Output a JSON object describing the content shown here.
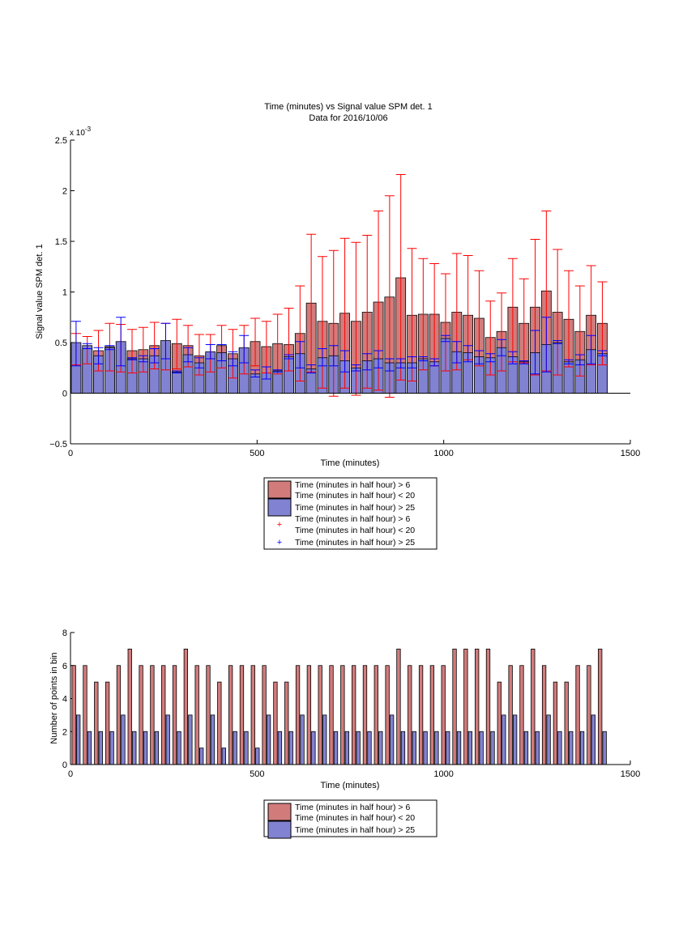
{
  "chart_data": [
    {
      "type": "bar",
      "title": "Time (minutes) vs Signal value SPM det. 1",
      "subtitle": "Data for 2016/10/06",
      "xlabel": "Time (minutes)",
      "ylabel": "Signal value SPM det. 1",
      "y_multiplier_label": "x 10",
      "y_multiplier_exp": "-3",
      "xlim": [
        0,
        1500
      ],
      "ylim": [
        -0.5,
        2.5
      ],
      "xticks": [
        "0",
        "500",
        "1000",
        "1500"
      ],
      "yticks": [
        "−0.5",
        "0",
        "0.5",
        "1",
        "1.5",
        "2",
        "2.5"
      ],
      "grid": false,
      "legend_position": "below",
      "legend": [
        {
          "line1": "Time (minutes in half hour) > 6",
          "line2": "Time (minutes in half hour) < 20"
        },
        {
          "line1": "Time (minutes in half hour) > 25"
        },
        {
          "line1": "Time (minutes in half hour) > 6",
          "line2": "Time (minutes in half hour) < 20"
        },
        {
          "line1": "Time (minutes in half hour) > 25"
        }
      ],
      "colors": {
        "series1": "#d27b7b",
        "series2": "#8282d2",
        "err1": "#ff0000",
        "err2": "#0000ff"
      },
      "x": [
        15,
        45,
        75,
        105,
        135,
        165,
        195,
        225,
        255,
        285,
        315,
        345,
        375,
        405,
        435,
        465,
        495,
        525,
        555,
        585,
        615,
        645,
        675,
        705,
        735,
        765,
        795,
        825,
        855,
        885,
        915,
        945,
        975,
        1005,
        1035,
        1065,
        1095,
        1125,
        1155,
        1185,
        1215,
        1245,
        1275,
        1305,
        1335,
        1365,
        1395,
        1425
      ],
      "series": [
        {
          "values": [
            0.43,
            0.44,
            0.42,
            0.46,
            0.44,
            0.42,
            0.43,
            0.47,
            0.47,
            0.49,
            0.47,
            0.37,
            0.39,
            0.47,
            0.39,
            0.44,
            0.51,
            0.46,
            0.49,
            0.48,
            0.59,
            0.89,
            0.71,
            0.69,
            0.79,
            0.71,
            0.8,
            0.9,
            0.95,
            1.14,
            0.77,
            0.78,
            0.78,
            0.7,
            0.8,
            0.77,
            0.74,
            0.55,
            0.61,
            0.85,
            0.69,
            0.85,
            1.01,
            0.8,
            0.73,
            0.61,
            0.77,
            0.69
          ],
          "err_low": [
            0.28,
            0.29,
            0.22,
            0.22,
            0.21,
            0.2,
            0.21,
            0.24,
            0.23,
            0.24,
            0.26,
            0.18,
            0.21,
            0.25,
            0.15,
            0.19,
            0.27,
            0.2,
            0.19,
            0.22,
            0.12,
            0.21,
            0.05,
            -0.03,
            0.05,
            -0.02,
            0.05,
            0.03,
            -0.04,
            0.13,
            0.12,
            0.23,
            0.27,
            0.22,
            0.23,
            0.33,
            0.27,
            0.18,
            0.22,
            0.31,
            0.3,
            0.18,
            0.22,
            0.18,
            0.26,
            0.17,
            0.28,
            0.28
          ],
          "err_high": [
            0.59,
            0.56,
            0.62,
            0.69,
            0.68,
            0.63,
            0.65,
            0.7,
            0.69,
            0.73,
            0.67,
            0.58,
            0.58,
            0.67,
            0.63,
            0.67,
            0.74,
            0.71,
            0.78,
            0.84,
            1.06,
            1.57,
            1.35,
            1.41,
            1.53,
            1.49,
            1.56,
            1.8,
            1.95,
            2.16,
            1.43,
            1.33,
            1.28,
            1.18,
            1.38,
            1.36,
            1.21,
            0.91,
            0.99,
            1.33,
            1.13,
            1.52,
            1.8,
            1.42,
            1.21,
            1.06,
            1.26,
            1.1
          ]
        },
        {
          "values": [
            0.5,
            0.47,
            0.37,
            0.45,
            0.51,
            0.34,
            0.34,
            0.37,
            0.52,
            0.21,
            0.38,
            0.3,
            0.41,
            0.4,
            0.34,
            0.45,
            0.19,
            0.2,
            0.22,
            0.36,
            0.39,
            0.24,
            0.35,
            0.37,
            0.32,
            0.25,
            0.32,
            0.34,
            0.3,
            0.3,
            0.3,
            0.34,
            0.31,
            0.54,
            0.41,
            0.4,
            0.36,
            0.35,
            0.45,
            0.36,
            0.31,
            0.4,
            0.48,
            0.5,
            0.31,
            0.33,
            0.43,
            0.39
          ],
          "err_low": [
            0.27,
            0.44,
            0.29,
            0.43,
            0.27,
            0.33,
            0.31,
            0.3,
            0.34,
            0.2,
            0.31,
            0.25,
            0.34,
            0.32,
            0.27,
            0.3,
            0.16,
            0.14,
            0.21,
            0.34,
            0.25,
            0.2,
            0.27,
            0.27,
            0.21,
            0.22,
            0.23,
            0.25,
            0.22,
            0.25,
            0.25,
            0.32,
            0.27,
            0.51,
            0.3,
            0.31,
            0.29,
            0.31,
            0.37,
            0.29,
            0.29,
            0.19,
            0.21,
            0.49,
            0.29,
            0.28,
            0.29,
            0.37
          ],
          "err_high": [
            0.71,
            0.49,
            0.45,
            0.47,
            0.75,
            0.35,
            0.37,
            0.44,
            0.69,
            0.22,
            0.45,
            0.35,
            0.48,
            0.48,
            0.41,
            0.57,
            0.23,
            0.26,
            0.23,
            0.38,
            0.51,
            0.28,
            0.44,
            0.47,
            0.42,
            0.28,
            0.39,
            0.42,
            0.34,
            0.34,
            0.36,
            0.36,
            0.34,
            0.57,
            0.51,
            0.47,
            0.42,
            0.39,
            0.53,
            0.41,
            0.32,
            0.62,
            0.75,
            0.52,
            0.33,
            0.38,
            0.57,
            0.42
          ]
        }
      ]
    },
    {
      "type": "bar",
      "xlabel": "Time (minutes)",
      "ylabel": "Number of points in bin",
      "xlim": [
        0,
        1500
      ],
      "ylim": [
        0,
        8
      ],
      "xticks": [
        "0",
        "500",
        "1000",
        "1500"
      ],
      "yticks": [
        "0",
        "2",
        "4",
        "6",
        "8"
      ],
      "grid": false,
      "legend_position": "below",
      "legend": [
        {
          "line1": "Time (minutes in half hour) > 6",
          "line2": "Time (minutes in half hour) < 20"
        },
        {
          "line1": "Time (minutes in half hour) > 25"
        }
      ],
      "colors": {
        "series1": "#d27b7b",
        "series2": "#8282d2"
      },
      "x": [
        15,
        45,
        75,
        105,
        135,
        165,
        195,
        225,
        255,
        285,
        315,
        345,
        375,
        405,
        435,
        465,
        495,
        525,
        555,
        585,
        615,
        645,
        675,
        705,
        735,
        765,
        795,
        825,
        855,
        885,
        915,
        945,
        975,
        1005,
        1035,
        1065,
        1095,
        1125,
        1155,
        1185,
        1215,
        1245,
        1275,
        1305,
        1335,
        1365,
        1395,
        1425
      ],
      "series": [
        {
          "values": [
            6,
            6,
            5,
            5,
            6,
            7,
            6,
            6,
            6,
            6,
            7,
            6,
            6,
            5,
            6,
            6,
            6,
            6,
            5,
            5,
            6,
            6,
            6,
            6,
            6,
            6,
            6,
            6,
            6,
            7,
            6,
            6,
            6,
            6,
            7,
            7,
            7,
            7,
            5,
            6,
            6,
            7,
            6,
            5,
            5,
            6,
            6,
            7
          ]
        },
        {
          "values": [
            3,
            2,
            2,
            2,
            3,
            2,
            2,
            2,
            3,
            2,
            3,
            1,
            3,
            1,
            2,
            2,
            1,
            3,
            2,
            2,
            3,
            2,
            3,
            2,
            2,
            2,
            2,
            2,
            3,
            2,
            2,
            2,
            2,
            2,
            2,
            2,
            2,
            2,
            3,
            3,
            2,
            2,
            3,
            2,
            2,
            2,
            3,
            2
          ]
        }
      ]
    }
  ]
}
